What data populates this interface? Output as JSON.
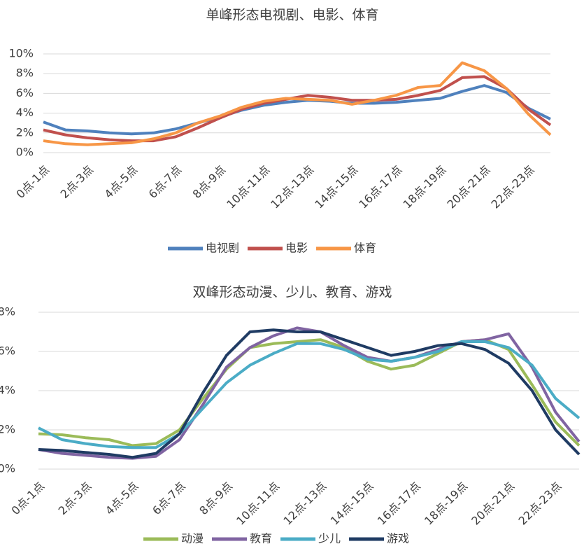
{
  "chart_data": [
    {
      "type": "line",
      "title": "单峰形态电视剧、电影、体育",
      "categories": [
        "0点-1点",
        null,
        "2点-3点",
        null,
        "4点-5点",
        null,
        "6点-7点",
        null,
        "8点-9点",
        null,
        "10点-11点",
        null,
        "12点-13点",
        null,
        "14点-15点",
        null,
        "16点-17点",
        null,
        "18点-19点",
        null,
        "20点-21点",
        null,
        "22点-23点",
        null
      ],
      "series": [
        {
          "name": "电视剧",
          "color": "#4f81bd",
          "values": [
            3.1,
            2.3,
            2.2,
            2.0,
            1.9,
            2.0,
            2.4,
            3.0,
            3.6,
            4.3,
            4.8,
            5.1,
            5.3,
            5.2,
            5.0,
            5.0,
            5.1,
            5.3,
            5.5,
            6.2,
            6.8,
            6.1,
            4.5,
            3.4
          ]
        },
        {
          "name": "电影",
          "color": "#c0504d",
          "values": [
            2.3,
            1.8,
            1.5,
            1.3,
            1.2,
            1.2,
            1.6,
            2.5,
            3.5,
            4.4,
            5.0,
            5.4,
            5.8,
            5.6,
            5.3,
            5.3,
            5.4,
            5.8,
            6.3,
            7.6,
            7.7,
            6.5,
            4.4,
            2.8
          ]
        },
        {
          "name": "体育",
          "color": "#f79646",
          "values": [
            1.2,
            0.9,
            0.8,
            0.9,
            1.0,
            1.4,
            2.0,
            3.0,
            3.7,
            4.6,
            5.2,
            5.5,
            5.4,
            5.3,
            4.9,
            5.3,
            5.8,
            6.6,
            6.8,
            9.1,
            8.3,
            6.5,
            3.9,
            1.8
          ]
        }
      ],
      "ylim": [
        0,
        10
      ],
      "yticks": [
        {
          "value": 0,
          "label": "0%"
        },
        {
          "value": 2,
          "label": "2%"
        },
        {
          "value": 4,
          "label": "4%"
        },
        {
          "value": 6,
          "label": "6%"
        },
        {
          "value": 8,
          "label": "8%"
        },
        {
          "value": 10,
          "label": "10%"
        }
      ],
      "grid": true,
      "legend": "bottom"
    },
    {
      "type": "line",
      "title": "双峰形态动漫、少儿、教育、游戏",
      "categories": [
        "0点-1点",
        null,
        "2点-3点",
        null,
        "4点-5点",
        null,
        "6点-7点",
        null,
        "8点-9点",
        null,
        "10点-11点",
        null,
        "12点-13点",
        null,
        "14点-15点",
        null,
        "16点-17点",
        null,
        "18点-19点",
        null,
        "20点-21点",
        null,
        "22点-23点",
        null
      ],
      "series": [
        {
          "name": "动漫",
          "color": "#9bbb59",
          "values": [
            1.8,
            1.75,
            1.6,
            1.5,
            1.2,
            1.3,
            2.0,
            3.6,
            5.1,
            6.2,
            6.4,
            6.5,
            6.6,
            6.2,
            5.5,
            5.1,
            5.3,
            5.9,
            6.5,
            6.6,
            6.1,
            4.3,
            2.4,
            1.2
          ]
        },
        {
          "name": "教育",
          "color": "#8064a2",
          "values": [
            1.0,
            0.8,
            0.7,
            0.6,
            0.55,
            0.65,
            1.5,
            3.3,
            5.2,
            6.2,
            6.8,
            7.2,
            7.0,
            6.3,
            5.7,
            5.5,
            5.7,
            6.1,
            6.5,
            6.6,
            6.9,
            5.2,
            2.9,
            1.4
          ]
        },
        {
          "name": "少儿",
          "color": "#4bacc6",
          "values": [
            2.1,
            1.5,
            1.3,
            1.15,
            1.1,
            1.1,
            1.8,
            3.1,
            4.4,
            5.3,
            5.9,
            6.4,
            6.4,
            6.1,
            5.6,
            5.5,
            5.7,
            6.0,
            6.5,
            6.5,
            6.2,
            5.3,
            3.6,
            2.6
          ]
        },
        {
          "name": "游戏",
          "color": "#1f3b63",
          "values": [
            1.0,
            0.95,
            0.85,
            0.75,
            0.6,
            0.8,
            1.8,
            3.9,
            5.8,
            7.0,
            7.1,
            7.0,
            7.0,
            6.6,
            6.2,
            5.8,
            6.0,
            6.3,
            6.4,
            6.1,
            5.4,
            4.0,
            2.0,
            0.75
          ]
        }
      ],
      "ylim": [
        0,
        8
      ],
      "yticks": [
        {
          "value": 0,
          "label": "0%"
        },
        {
          "value": 2,
          "label": "2%"
        },
        {
          "value": 4,
          "label": "4%"
        },
        {
          "value": 6,
          "label": "6%"
        },
        {
          "value": 8,
          "label": "8%"
        }
      ],
      "grid": true,
      "legend": "bottom"
    }
  ]
}
